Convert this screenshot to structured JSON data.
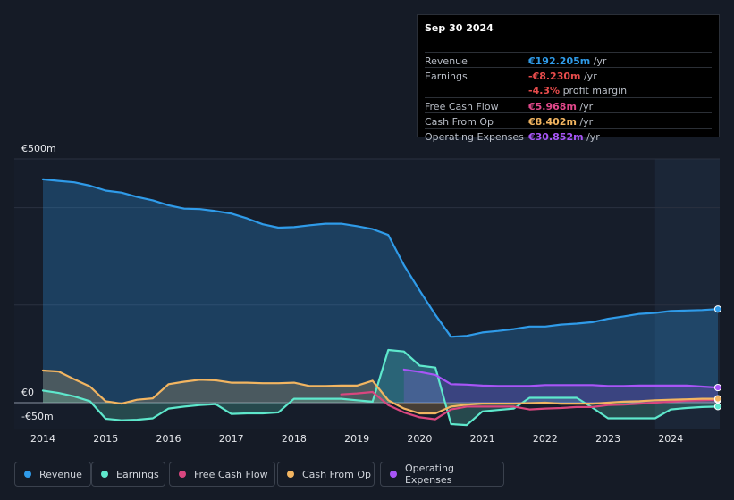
{
  "tooltip": {
    "date": "Sep 30 2024",
    "rows": [
      {
        "label": "Revenue",
        "value": "€192.205m",
        "unit": " /yr",
        "color": "#2f9be9"
      },
      {
        "label": "Earnings",
        "value": "-€8.230m",
        "unit": " /yr",
        "color": "#e84c4c"
      },
      {
        "label": "",
        "value": "-4.3%",
        "unit": " profit margin",
        "color": "#e84c4c"
      },
      {
        "label": "Free Cash Flow",
        "value": "€5.968m",
        "unit": " /yr",
        "color": "#e0488a"
      },
      {
        "label": "Cash From Op",
        "value": "€8.402m",
        "unit": " /yr",
        "color": "#f2b561"
      },
      {
        "label": "Operating Expenses",
        "value": "€30.852m",
        "unit": " /yr",
        "color": "#a855f7"
      }
    ]
  },
  "legend": [
    {
      "label": "Revenue",
      "color": "#2f9be9"
    },
    {
      "label": "Earnings",
      "color": "#5ee8cc"
    },
    {
      "label": "Free Cash Flow",
      "color": "#d9467f"
    },
    {
      "label": "Cash From Op",
      "color": "#f2b561"
    },
    {
      "label": "Operating Expenses",
      "color": "#a855f7"
    }
  ],
  "chart_data": {
    "type": "area",
    "title": "",
    "currency": "EUR",
    "y_tick_labels": [
      "€500m",
      "€0",
      "-€50m"
    ],
    "ylim": [
      -55,
      500
    ],
    "xlim": [
      2014.0,
      2024.75
    ],
    "x_tick_labels": [
      "2014",
      "2015",
      "2016",
      "2017",
      "2018",
      "2019",
      "2020",
      "2021",
      "2022",
      "2023",
      "2024"
    ],
    "x_ticks": [
      2014,
      2015,
      2016,
      2017,
      2018,
      2019,
      2020,
      2021,
      2022,
      2023,
      2024
    ],
    "forecast_shade_from": 2023.75,
    "series": [
      {
        "name": "Revenue",
        "color": "#2f9be9",
        "fill": true,
        "x": [
          2014.0,
          2014.25,
          2014.5,
          2014.75,
          2015.0,
          2015.25,
          2015.5,
          2015.75,
          2016.0,
          2016.25,
          2016.5,
          2016.75,
          2017.0,
          2017.25,
          2017.5,
          2017.75,
          2018.0,
          2018.25,
          2018.5,
          2018.75,
          2019.0,
          2019.25,
          2019.5,
          2019.75,
          2020.0,
          2020.25,
          2020.5,
          2020.75,
          2021.0,
          2021.25,
          2021.5,
          2021.75,
          2022.0,
          2022.25,
          2022.5,
          2022.75,
          2023.0,
          2023.25,
          2023.5,
          2023.75,
          2024.0,
          2024.25,
          2024.5,
          2024.75
        ],
        "values": [
          458,
          455,
          452,
          445,
          435,
          431,
          422,
          415,
          405,
          398,
          397,
          393,
          388,
          378,
          366,
          359,
          360,
          364,
          367,
          367,
          362,
          356,
          344,
          282,
          230,
          180,
          135,
          137,
          144,
          147,
          151,
          156,
          156,
          160,
          162,
          165,
          172,
          177,
          182,
          184,
          188,
          189,
          190,
          192
        ]
      },
      {
        "name": "Earnings",
        "color": "#5ee8cc",
        "fill": true,
        "x": [
          2014.0,
          2014.25,
          2014.5,
          2014.75,
          2015.0,
          2015.25,
          2015.5,
          2015.75,
          2016.0,
          2016.25,
          2016.5,
          2016.75,
          2017.0,
          2017.25,
          2017.5,
          2017.75,
          2018.0,
          2018.25,
          2018.5,
          2018.75,
          2019.0,
          2019.25,
          2019.5,
          2019.75,
          2020.0,
          2020.25,
          2020.5,
          2020.75,
          2021.0,
          2021.25,
          2021.5,
          2021.75,
          2022.0,
          2022.25,
          2022.5,
          2022.75,
          2023.0,
          2023.25,
          2023.5,
          2023.75,
          2024.0,
          2024.25,
          2024.5,
          2024.75
        ],
        "values": [
          25,
          20,
          13,
          3,
          -33,
          -36,
          -35,
          -32,
          -12,
          -8,
          -5,
          -3,
          -23,
          -22,
          -22,
          -20,
          8,
          8,
          8,
          8,
          5,
          2,
          108,
          105,
          76,
          72,
          -44,
          -46,
          -18,
          -15,
          -12,
          10,
          10,
          10,
          10,
          -10,
          -32,
          -32,
          -32,
          -32,
          -14,
          -11,
          -9,
          -8
        ]
      },
      {
        "name": "Free Cash Flow",
        "color": "#d9467f",
        "fill": false,
        "x": [
          2018.75,
          2019.0,
          2019.25,
          2019.5,
          2019.75,
          2020.0,
          2020.25,
          2020.5,
          2020.75,
          2021.0,
          2021.25,
          2021.5,
          2021.75,
          2022.0,
          2022.25,
          2022.5,
          2022.75,
          2023.0,
          2023.25,
          2023.5,
          2023.75,
          2024.0,
          2024.25,
          2024.5,
          2024.75
        ],
        "values": [
          17,
          19,
          22,
          -5,
          -20,
          -30,
          -34,
          -14,
          -8,
          -8,
          -8,
          -8,
          -14,
          -12,
          -11,
          -9,
          -9,
          -5,
          -4,
          -2,
          0,
          2,
          4,
          5,
          6
        ]
      },
      {
        "name": "Cash From Op",
        "color": "#f2b561",
        "fill": true,
        "x": [
          2014.0,
          2014.25,
          2014.5,
          2014.75,
          2015.0,
          2015.25,
          2015.5,
          2015.75,
          2016.0,
          2016.25,
          2016.5,
          2016.75,
          2017.0,
          2017.25,
          2017.5,
          2017.75,
          2018.0,
          2018.25,
          2018.5,
          2018.75,
          2019.0,
          2019.25,
          2019.5,
          2019.75,
          2020.0,
          2020.25,
          2020.5,
          2020.75,
          2021.0,
          2021.25,
          2021.5,
          2021.75,
          2022.0,
          2022.25,
          2022.5,
          2022.75,
          2023.0,
          2023.25,
          2023.5,
          2023.75,
          2024.0,
          2024.25,
          2024.5,
          2024.75
        ],
        "values": [
          66,
          64,
          48,
          33,
          3,
          -2,
          6,
          9,
          38,
          43,
          47,
          46,
          41,
          41,
          40,
          40,
          41,
          34,
          34,
          35,
          35,
          45,
          5,
          -12,
          -22,
          -22,
          -8,
          -4,
          -2,
          -2,
          -2,
          -1,
          0,
          -2,
          -2,
          -2,
          0,
          2,
          3,
          5,
          6,
          7,
          8,
          8
        ]
      },
      {
        "name": "Operating Expenses",
        "color": "#a855f7",
        "fill": true,
        "x": [
          2019.75,
          2020.0,
          2020.25,
          2020.5,
          2020.75,
          2021.0,
          2021.25,
          2021.5,
          2021.75,
          2022.0,
          2022.25,
          2022.5,
          2022.75,
          2023.0,
          2023.25,
          2023.5,
          2023.75,
          2024.0,
          2024.25,
          2024.5,
          2024.75
        ],
        "values": [
          68,
          63,
          57,
          38,
          37,
          35,
          34,
          34,
          34,
          36,
          36,
          36,
          36,
          34,
          34,
          35,
          35,
          35,
          35,
          33,
          31
        ]
      }
    ]
  }
}
